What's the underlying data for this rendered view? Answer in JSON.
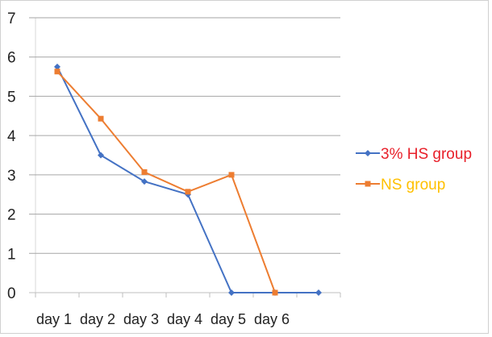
{
  "chart_data": {
    "type": "line",
    "title": "",
    "xlabel": "",
    "ylabel": "",
    "categories": [
      "day 1",
      "day 2",
      "day 3",
      "day 4",
      "day 5",
      "day 6",
      ""
    ],
    "ylim": [
      0,
      7
    ],
    "yticks": [
      0,
      1,
      2,
      3,
      4,
      5,
      6,
      7
    ],
    "grid": true,
    "legend_position": "right",
    "series": [
      {
        "name": "3% HS group",
        "values": [
          5.75,
          3.5,
          2.83,
          2.5,
          0,
          0,
          0
        ],
        "color": "#4472c4",
        "label_color": "#e8202a",
        "marker": "diamond"
      },
      {
        "name": "NS group",
        "values": [
          5.63,
          4.43,
          3.07,
          2.57,
          3.0,
          0,
          null
        ],
        "color": "#ed7d31",
        "label_color": "#ffc000",
        "marker": "square"
      }
    ]
  }
}
